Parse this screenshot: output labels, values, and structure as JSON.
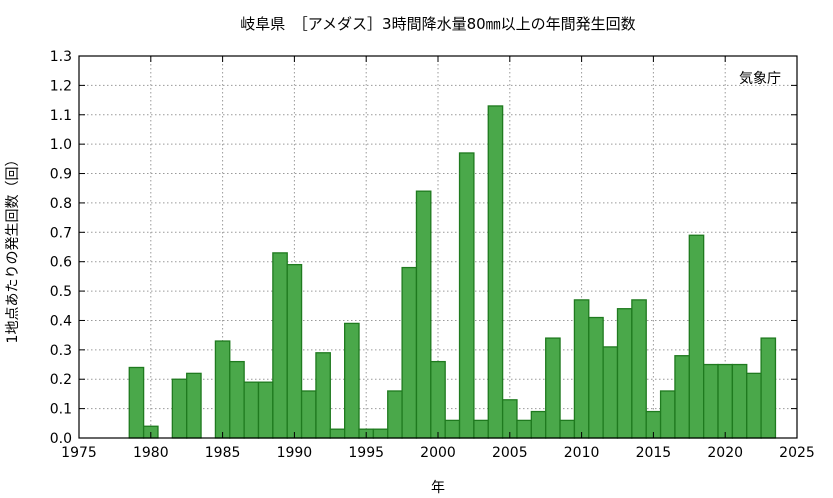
{
  "colors": {
    "bar_fill": "#4aa84a",
    "bar_stroke": "#1f7a1f",
    "axis": "#000000",
    "grid": "#9a9a9a",
    "background": "#ffffff"
  },
  "chart_data": {
    "type": "bar",
    "title": "岐阜県　［アメダス］3時間降水量80㎜以上の年間発生回数",
    "xlabel": "年",
    "ylabel": "1地点あたりの発生回数（回）",
    "annotation": "気象庁",
    "xlim": [
      1975,
      2025
    ],
    "ylim": [
      0,
      1.3
    ],
    "x_ticks": [
      1975,
      1980,
      1985,
      1990,
      1995,
      2000,
      2005,
      2010,
      2015,
      2020,
      2025
    ],
    "y_ticks": [
      "0.0",
      "0.1",
      "0.2",
      "0.3",
      "0.4",
      "0.5",
      "0.6",
      "0.7",
      "0.8",
      "0.9",
      "1.0",
      "1.1",
      "1.2",
      "1.3"
    ],
    "grid": true,
    "legend": "none",
    "x": [
      1979,
      1980,
      1981,
      1982,
      1983,
      1984,
      1985,
      1986,
      1987,
      1988,
      1989,
      1990,
      1991,
      1992,
      1993,
      1994,
      1995,
      1996,
      1997,
      1998,
      1999,
      2000,
      2001,
      2002,
      2003,
      2004,
      2005,
      2006,
      2007,
      2008,
      2009,
      2010,
      2011,
      2012,
      2013,
      2014,
      2015,
      2016,
      2017,
      2018,
      2019,
      2020,
      2021,
      2022,
      2023
    ],
    "values": [
      0.24,
      0.04,
      0.0,
      0.2,
      0.22,
      0.0,
      0.33,
      0.26,
      0.19,
      0.19,
      0.63,
      0.59,
      0.16,
      0.29,
      0.03,
      0.39,
      0.03,
      0.03,
      0.16,
      0.58,
      0.84,
      0.26,
      0.06,
      0.97,
      0.06,
      1.13,
      0.13,
      0.06,
      0.09,
      0.34,
      0.06,
      0.47,
      0.41,
      0.31,
      0.44,
      0.47,
      0.09,
      0.16,
      0.28,
      0.69,
      0.25,
      0.25,
      0.25,
      0.22,
      0.34
    ]
  }
}
